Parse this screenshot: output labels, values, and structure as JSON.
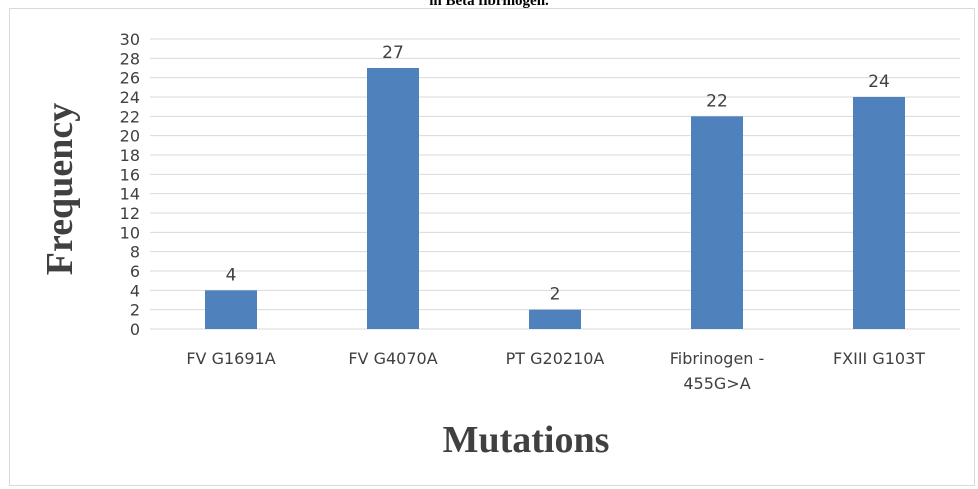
{
  "chart_data": {
    "type": "bar",
    "title": "in Beta fibrinogen.",
    "xlabel": "Mutations",
    "ylabel": "Frequency",
    "categories": [
      [
        "FV G1691A"
      ],
      [
        "FV G4070A"
      ],
      [
        "PT G20210A"
      ],
      [
        "Fibrinogen -",
        "455G>A"
      ],
      [
        "FXIII G103T"
      ]
    ],
    "values": [
      4,
      27,
      2,
      22,
      24
    ],
    "ylim": [
      0,
      30
    ],
    "yticks": [
      0,
      2,
      4,
      6,
      8,
      10,
      12,
      14,
      16,
      18,
      20,
      22,
      24,
      26,
      28,
      30
    ],
    "grid": true,
    "legend": "none",
    "bar_color": "#4f81bd",
    "grid_color": "#d9d9d9"
  }
}
